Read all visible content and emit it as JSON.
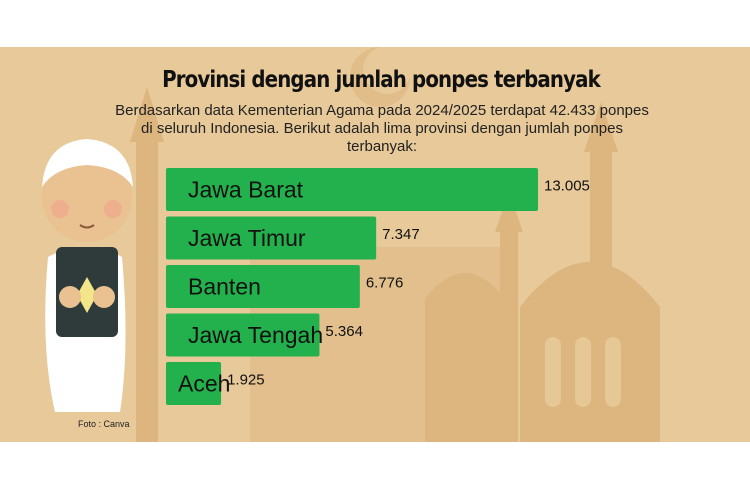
{
  "header": {
    "title": "Provinsi dengan jumlah ponpes terbanyak",
    "subtitle": "Berdasarkan data Kementerian Agama pada 2024/2025 terdapat 42.433 ponpes di seluruh Indonesia. Berikut adalah lima provinsi dengan jumlah ponpes terbanyak:"
  },
  "footer": {
    "credit": "Foto : Canva"
  },
  "colors": {
    "background": "#e8c999",
    "bar": "#22b14c",
    "silhouette": "#d9b27a"
  },
  "chart_data": {
    "type": "bar",
    "orientation": "horizontal",
    "categories": [
      "Jawa Barat",
      "Jawa Timur",
      "Banten",
      "Jawa Tengah",
      "Aceh"
    ],
    "values": [
      13005,
      7347,
      6776,
      5364,
      1925
    ],
    "value_labels": [
      "13.005",
      "7.347",
      "6.776",
      "5.364",
      "1.925"
    ],
    "xlim": [
      0,
      13005
    ],
    "grid": false,
    "legend": "none"
  }
}
